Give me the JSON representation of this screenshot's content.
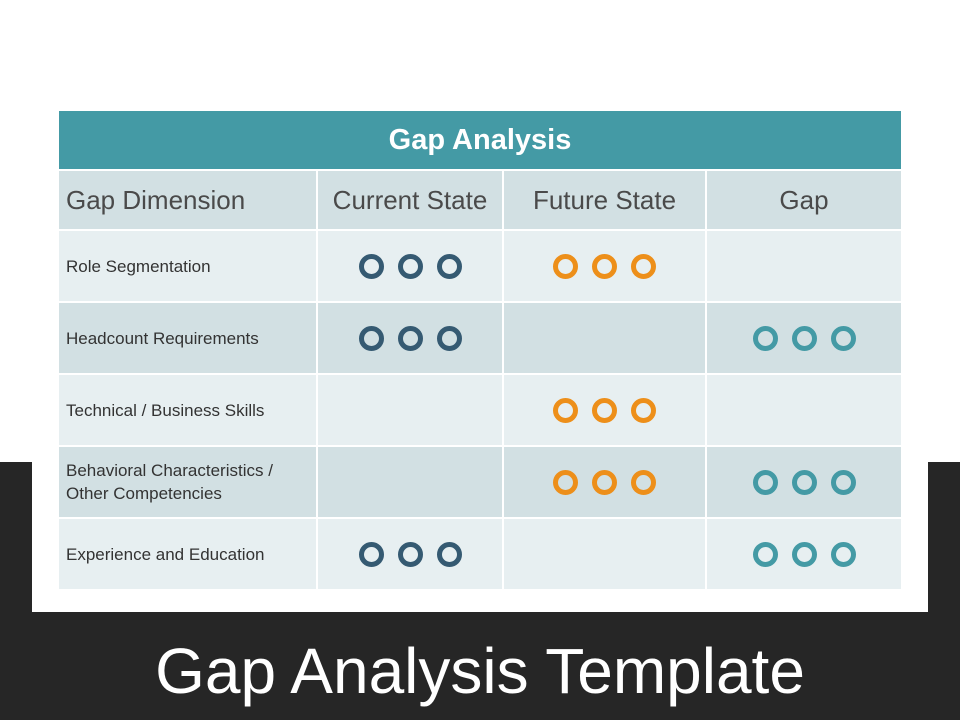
{
  "slide_title": "Gap Analysis Template",
  "table": {
    "title": "Gap Analysis",
    "headers": [
      "Gap Dimension",
      "Current State",
      "Future State",
      "Gap"
    ],
    "rows": [
      {
        "dimension": "Role Segmentation",
        "current": true,
        "future": true,
        "gap": false
      },
      {
        "dimension": "Headcount Requirements",
        "current": true,
        "future": false,
        "gap": true
      },
      {
        "dimension": "Technical / Business Skills",
        "current": false,
        "future": true,
        "gap": false
      },
      {
        "dimension": "Behavioral Characteristics / Other Competencies",
        "current": false,
        "future": true,
        "gap": true
      },
      {
        "dimension": "Experience and Education",
        "current": true,
        "future": false,
        "gap": true
      }
    ]
  },
  "colors": {
    "current": "#355a72",
    "future": "#ed8f1a",
    "gap": "#449aa5",
    "title_bar": "#449aa5",
    "dark_band": "#262626"
  },
  "icons": {
    "current": "ring-icon",
    "future": "ring-icon",
    "gap": "ring-icon"
  }
}
